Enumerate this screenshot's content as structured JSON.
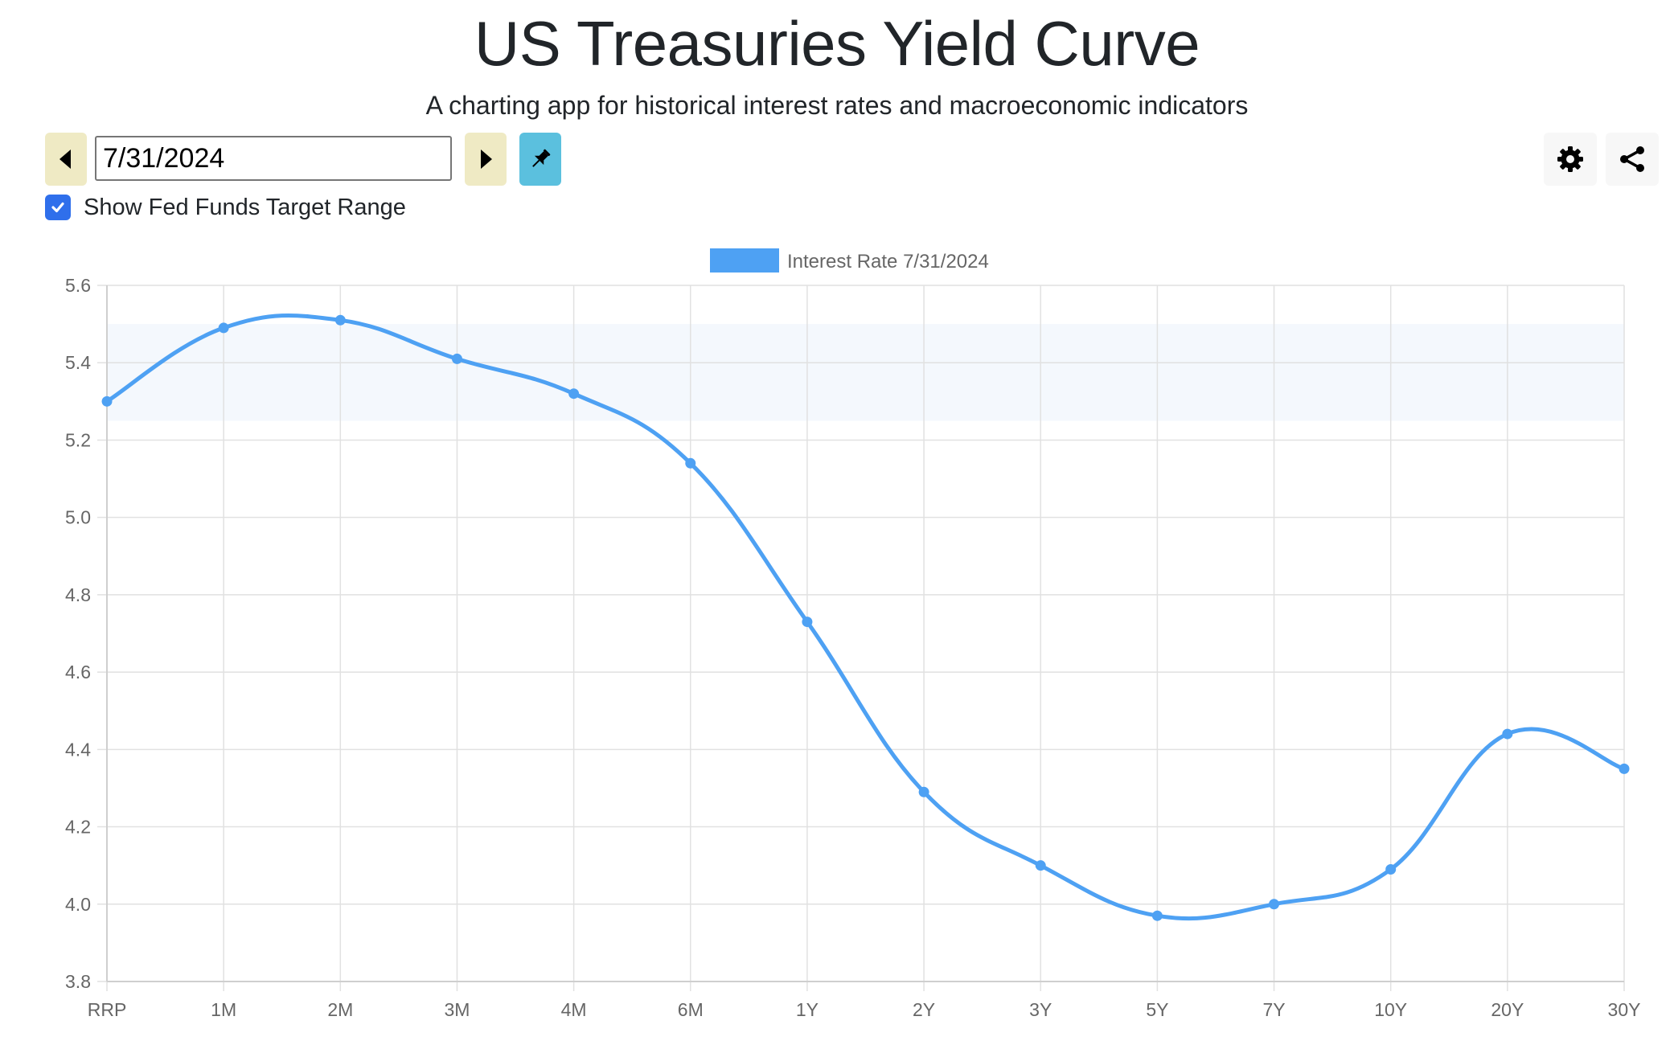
{
  "header": {
    "title": "US Treasuries Yield Curve",
    "subtitle": "A charting app for historical interest rates and macroeconomic indicators"
  },
  "controls": {
    "date_value": "7/31/2024",
    "prev_icon": "caret-left-icon",
    "next_icon": "caret-right-icon",
    "pin_icon": "pin-icon",
    "settings_icon": "gear-icon",
    "share_icon": "share-icon",
    "show_fed_funds_label": "Show Fed Funds Target Range",
    "show_fed_funds_checked": true
  },
  "colors": {
    "line": "#4ea1f3",
    "band": "#f4f8fd",
    "nav_button": "#efeac4",
    "pin_button": "#5bc0de",
    "checkbox": "#2f6feb"
  },
  "chart_data": {
    "type": "line",
    "categories": [
      "RRP",
      "1M",
      "2M",
      "3M",
      "4M",
      "6M",
      "1Y",
      "2Y",
      "3Y",
      "5Y",
      "7Y",
      "10Y",
      "20Y",
      "30Y"
    ],
    "series": [
      {
        "name": "Interest Rate 7/31/2024",
        "values": [
          5.3,
          5.49,
          5.51,
          5.41,
          5.32,
          5.14,
          4.73,
          4.29,
          4.1,
          3.97,
          4.0,
          4.09,
          4.44,
          4.35
        ]
      }
    ],
    "fed_funds_target_range": [
      5.25,
      5.5
    ],
    "yticks": [
      "3.8",
      "4.0",
      "4.2",
      "4.4",
      "4.6",
      "4.8",
      "5.0",
      "5.2",
      "5.4",
      "5.6"
    ],
    "ylim": [
      3.8,
      5.6
    ],
    "legend_position": "top-center",
    "grid": true,
    "smooth": true
  }
}
